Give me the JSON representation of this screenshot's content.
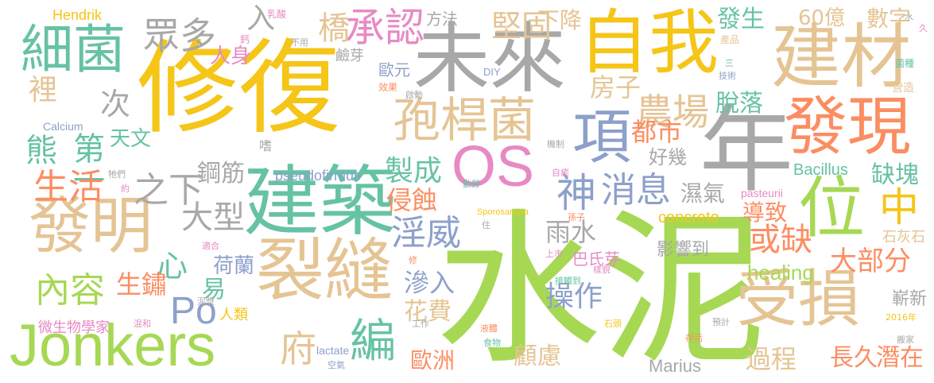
{
  "word_cloud": {
    "background": "#ffffff",
    "palette": {
      "yellow": "#f5c518",
      "green": "#a6d854",
      "tan": "#e5c494",
      "gray": "#a8a8a8",
      "teal": "#66c2a5",
      "blue": "#8da0cb",
      "orange": "#fc8d62",
      "pink": "#e78ac3"
    },
    "words": [
      {
        "text": "修復",
        "color": "yellow"
      },
      {
        "text": "水泥",
        "color": "green"
      },
      {
        "text": "未來",
        "color": "gray"
      },
      {
        "text": "自我",
        "color": "yellow"
      },
      {
        "text": "建材",
        "color": "tan"
      },
      {
        "text": "年",
        "color": "gray"
      },
      {
        "text": "建築",
        "color": "teal"
      },
      {
        "text": "裂縫",
        "color": "tan"
      },
      {
        "text": "Jonkers",
        "color": "green"
      },
      {
        "text": "發明",
        "color": "tan"
      },
      {
        "text": "OS",
        "color": "pink"
      },
      {
        "text": "位",
        "color": "green"
      },
      {
        "text": "受損",
        "color": "tan"
      },
      {
        "text": "發現",
        "color": "orange"
      },
      {
        "text": "項",
        "color": "blue"
      },
      {
        "text": "細菌",
        "color": "teal"
      },
      {
        "text": "孢桿菌",
        "color": "tan"
      },
      {
        "text": "農場",
        "color": "tan"
      },
      {
        "text": "承認",
        "color": "pink"
      },
      {
        "text": "橋",
        "color": "tan"
      },
      {
        "text": "眾多",
        "color": "gray"
      },
      {
        "text": "入",
        "color": "gray"
      },
      {
        "text": "堅固",
        "color": "tan"
      },
      {
        "text": "下降",
        "color": "tan"
      },
      {
        "text": "方法",
        "color": "gray"
      },
      {
        "text": "發生",
        "color": "teal"
      },
      {
        "text": "60億",
        "color": "tan"
      },
      {
        "text": "數字",
        "color": "tan"
      },
      {
        "text": "房子",
        "color": "tan"
      },
      {
        "text": "脫落",
        "color": "teal"
      },
      {
        "text": "都市",
        "color": "orange"
      },
      {
        "text": "好幾",
        "color": "gray"
      },
      {
        "text": "神",
        "color": "blue"
      },
      {
        "text": "消息",
        "color": "blue"
      },
      {
        "text": "製成",
        "color": "teal"
      },
      {
        "text": "侵蝕",
        "color": "orange"
      },
      {
        "text": "淫威",
        "color": "blue"
      },
      {
        "text": "鋼筋",
        "color": "gray"
      },
      {
        "text": "之下",
        "color": "gray"
      },
      {
        "text": "大型",
        "color": "gray"
      },
      {
        "text": "人身",
        "color": "pink"
      },
      {
        "text": "歐元",
        "color": "blue"
      },
      {
        "text": "鹼芽",
        "color": "gray"
      },
      {
        "text": "裡",
        "color": "tan"
      },
      {
        "text": "次",
        "color": "gray"
      },
      {
        "text": "熊",
        "color": "teal"
      },
      {
        "text": "第一",
        "color": "teal"
      },
      {
        "text": "天文",
        "color": "teal"
      },
      {
        "text": "生活",
        "color": "orange"
      },
      {
        "text": "心",
        "color": "teal"
      },
      {
        "text": "Po",
        "color": "blue"
      },
      {
        "text": "內容",
        "color": "green"
      },
      {
        "text": "生鏽",
        "color": "orange"
      },
      {
        "text": "易",
        "color": "teal"
      },
      {
        "text": "荷蘭",
        "color": "blue"
      },
      {
        "text": "人類",
        "color": "yellow"
      },
      {
        "text": "府",
        "color": "tan"
      },
      {
        "text": "編",
        "color": "teal"
      },
      {
        "text": "歐洲",
        "color": "orange"
      },
      {
        "text": "顧慮",
        "color": "tan"
      },
      {
        "text": "滲入",
        "color": "blue"
      },
      {
        "text": "花費",
        "color": "tan"
      },
      {
        "text": "操作",
        "color": "blue"
      },
      {
        "text": "雨水",
        "color": "gray"
      },
      {
        "text": "中",
        "color": "yellow"
      },
      {
        "text": "或缺",
        "color": "orange"
      },
      {
        "text": "缺塊",
        "color": "teal"
      },
      {
        "text": "濕氣",
        "color": "gray"
      },
      {
        "text": "導致",
        "color": "orange"
      },
      {
        "text": "大部分",
        "color": "orange"
      },
      {
        "text": "石灰石",
        "color": "tan"
      },
      {
        "text": "影響到",
        "color": "gray"
      },
      {
        "text": "巴氏芽",
        "color": "pink"
      },
      {
        "text": "healing",
        "color": "green"
      },
      {
        "text": "嶄新",
        "color": "gray"
      },
      {
        "text": "過程",
        "color": "tan"
      },
      {
        "text": "長久",
        "color": "orange"
      },
      {
        "text": "潛在",
        "color": "orange"
      },
      {
        "text": "Marius",
        "color": "gray"
      },
      {
        "text": "concrete",
        "color": "yellow"
      },
      {
        "text": "Bacillus",
        "color": "teal"
      },
      {
        "text": "pseudofirmus",
        "color": "blue"
      },
      {
        "text": "Sporosarcina",
        "color": "yellow"
      },
      {
        "text": "pasteurii",
        "color": "pink"
      },
      {
        "text": "Calcium",
        "color": "blue"
      },
      {
        "text": "lactate",
        "color": "blue"
      },
      {
        "text": "Hendrik",
        "color": "yellow"
      },
      {
        "text": "DIY",
        "color": "blue"
      },
      {
        "text": "微生物學家",
        "color": "pink"
      },
      {
        "text": "2016年",
        "color": "yellow"
      },
      {
        "text": "乳酸",
        "color": "pink"
      },
      {
        "text": "鈣",
        "color": "pink"
      },
      {
        "text": "不用",
        "color": "gray"
      },
      {
        "text": "效果",
        "color": "orange"
      },
      {
        "text": "啟動",
        "color": "gray"
      },
      {
        "text": "水",
        "color": "gray"
      },
      {
        "text": "久",
        "color": "pink"
      },
      {
        "text": "產品",
        "color": "tan"
      },
      {
        "text": "菌種",
        "color": "teal"
      },
      {
        "text": "營造",
        "color": "tan"
      },
      {
        "text": "三",
        "color": "teal"
      },
      {
        "text": "技術",
        "color": "blue"
      },
      {
        "text": "機制",
        "color": "gray"
      },
      {
        "text": "勤勞",
        "color": "teal"
      },
      {
        "text": "自癒",
        "color": "pink"
      },
      {
        "text": "嗜",
        "color": "gray"
      },
      {
        "text": "牠們",
        "color": "gray"
      },
      {
        "text": "約",
        "color": "pink"
      },
      {
        "text": "適合",
        "color": "pink"
      },
      {
        "text": "孫子",
        "color": "orange"
      },
      {
        "text": "住",
        "color": "gray"
      },
      {
        "text": "上市",
        "color": "pink"
      },
      {
        "text": "樣貌",
        "color": "pink"
      },
      {
        "text": "修",
        "color": "orange"
      },
      {
        "text": "泥漿",
        "color": "gray"
      },
      {
        "text": "混和",
        "color": "pink"
      },
      {
        "text": "接觸到",
        "color": "teal"
      },
      {
        "text": "工作",
        "color": "gray"
      },
      {
        "text": "液體",
        "color": "orange"
      },
      {
        "text": "食物",
        "color": "teal"
      },
      {
        "text": "石頭",
        "color": "yellow"
      },
      {
        "text": "預計",
        "color": "gray"
      },
      {
        "text": "存活",
        "color": "orange"
      },
      {
        "text": "搬家",
        "color": "gray"
      },
      {
        "text": "空氣",
        "color": "blue"
      }
    ]
  }
}
